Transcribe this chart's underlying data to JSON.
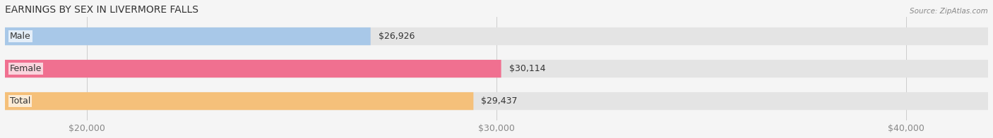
{
  "title": "EARNINGS BY SEX IN LIVERMORE FALLS",
  "source": "Source: ZipAtlas.com",
  "categories": [
    "Male",
    "Female",
    "Total"
  ],
  "values": [
    26926,
    30114,
    29437
  ],
  "bar_colors": [
    "#a8c8e8",
    "#f07090",
    "#f5c07a"
  ],
  "background_color": "#f0f0f0",
  "bar_bg_color": "#e8e8e8",
  "xlim": [
    18000,
    42000
  ],
  "xticks": [
    20000,
    30000,
    40000
  ],
  "xtick_labels": [
    "$20,000",
    "$30,000",
    "$40,000"
  ],
  "value_labels": [
    "$26,926",
    "$30,114",
    "$29,437"
  ],
  "title_fontsize": 10,
  "label_fontsize": 9,
  "tick_fontsize": 9
}
